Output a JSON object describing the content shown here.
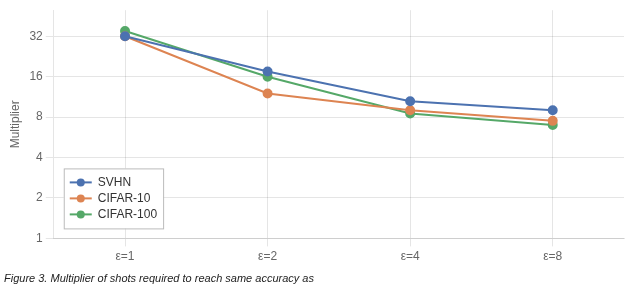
{
  "chart_data": {
    "type": "line",
    "categories": [
      "ε=1",
      "ε=2",
      "ε=4",
      "ε=8"
    ],
    "series": [
      {
        "name": "SVHN",
        "color": "#4c72b0",
        "marker": "circle",
        "values": [
          32.0,
          17.5,
          10.5,
          9.0
        ]
      },
      {
        "name": "CIFAR-10",
        "color": "#dd8452",
        "marker": "circle",
        "values": [
          32.0,
          12.0,
          9.0,
          7.5
        ]
      },
      {
        "name": "CIFAR-100",
        "color": "#55a868",
        "marker": "circle",
        "values": [
          35.0,
          16.0,
          8.5,
          7.0
        ]
      }
    ],
    "ylabel": "Multiplier",
    "ylim": [
      1,
      50
    ],
    "yticks": [
      1,
      2,
      4,
      8,
      16,
      32
    ],
    "log": "y",
    "grid": true,
    "legend": "lower left",
    "caption": "Figure 3. Multiplier of shots required to reach same accuracy as"
  }
}
